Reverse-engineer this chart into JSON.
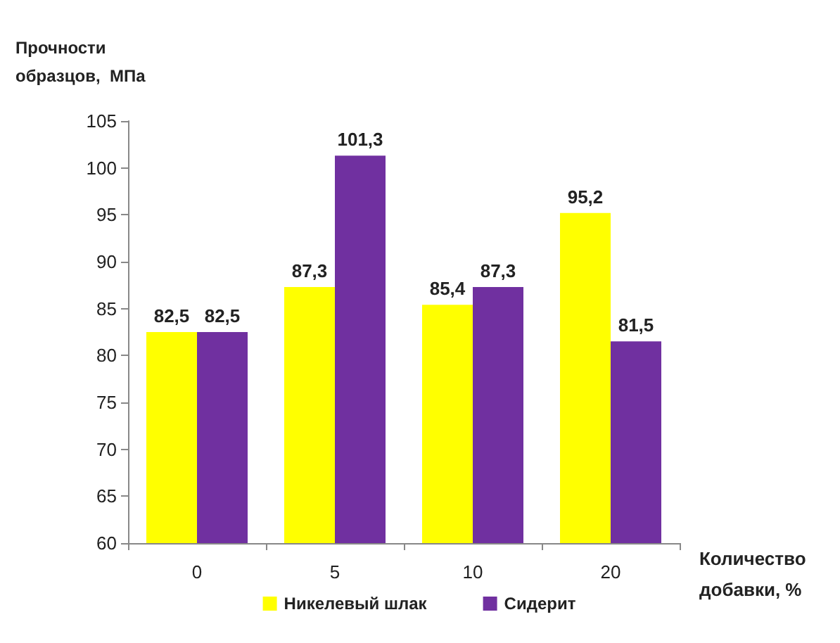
{
  "chart_data": {
    "type": "bar",
    "ylabel": "Прочности\nобразцов,  МПа",
    "xlabel": "Количество\nдобавки, %",
    "categories": [
      "0",
      "5",
      "10",
      "20"
    ],
    "series": [
      {
        "name": "Никелевый шлак",
        "color": "#ffff00",
        "values": [
          82.5,
          87.3,
          85.4,
          95.2
        ],
        "value_labels": [
          "82,5",
          "87,3",
          "85,4",
          "95,2"
        ]
      },
      {
        "name": "Сидерит",
        "color": "#7030a0",
        "values": [
          82.5,
          101.3,
          87.3,
          81.5
        ],
        "value_labels": [
          "82,5",
          "101,3",
          "87,3",
          "81,5"
        ]
      }
    ],
    "ylim": [
      60,
      105
    ],
    "yticks": [
      60,
      65,
      70,
      75,
      80,
      85,
      90,
      95,
      100,
      105
    ],
    "grid": false,
    "legend": "bottom"
  }
}
